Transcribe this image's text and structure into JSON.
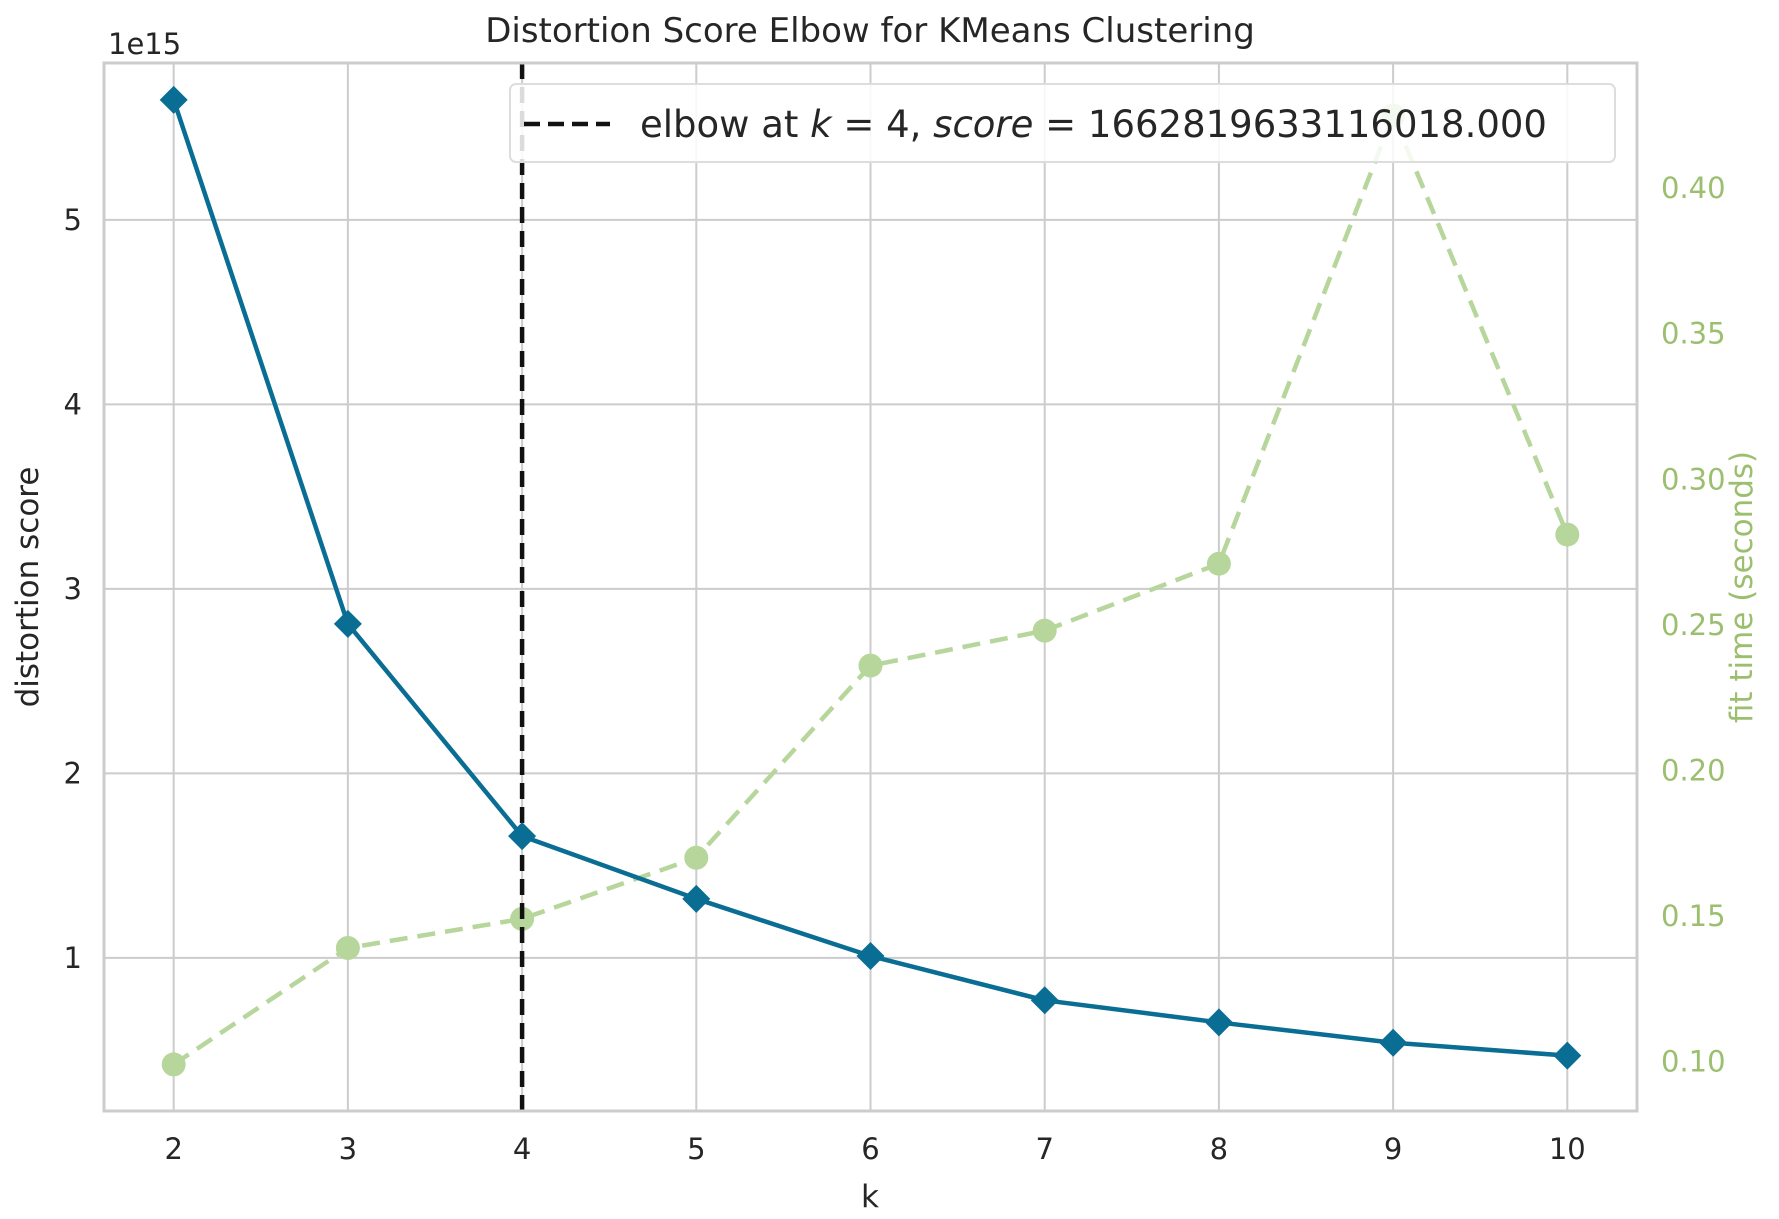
{
  "chart_data": {
    "type": "line",
    "title": "Distortion Score Elbow for KMeans Clustering",
    "xlabel": "k",
    "ylabel": "distortion score",
    "y2label": "fit time (seconds)",
    "y_offset_label": "1e15",
    "x": [
      2,
      3,
      4,
      5,
      6,
      7,
      8,
      9,
      10
    ],
    "x_ticks": [
      "2",
      "3",
      "4",
      "5",
      "6",
      "7",
      "8",
      "9",
      "10"
    ],
    "y_ticks": [
      "1",
      "2",
      "3",
      "4",
      "5"
    ],
    "y2_ticks": [
      "0.10",
      "0.15",
      "0.20",
      "0.25",
      "0.30",
      "0.35",
      "0.40"
    ],
    "xlim": [
      1.6,
      10.4
    ],
    "ylim": [
      0.17,
      5.85
    ],
    "y2lim": [
      0.083,
      0.443
    ],
    "grid": true,
    "series": [
      {
        "name": "distortion score",
        "axis": "left",
        "marker": "diamond",
        "style": "solid",
        "color": "#0a6d93",
        "values": [
          5.65,
          2.81,
          1.66,
          1.32,
          1.01,
          0.77,
          0.65,
          0.54,
          0.47
        ]
      },
      {
        "name": "fit time (seconds)",
        "axis": "right",
        "marker": "circle",
        "style": "dashed",
        "color": "#b7d69c",
        "values": [
          0.099,
          0.139,
          0.149,
          0.17,
          0.236,
          0.248,
          0.271,
          0.425,
          0.281
        ]
      }
    ],
    "elbow": {
      "k": 4,
      "legend_prefix": "elbow at ",
      "legend_k": "k",
      "legend_eq1": " = 4, ",
      "legend_score": "score",
      "legend_eq2": " = 1662819633116018.000",
      "color": "#111111"
    },
    "legend_position": "top-right"
  }
}
